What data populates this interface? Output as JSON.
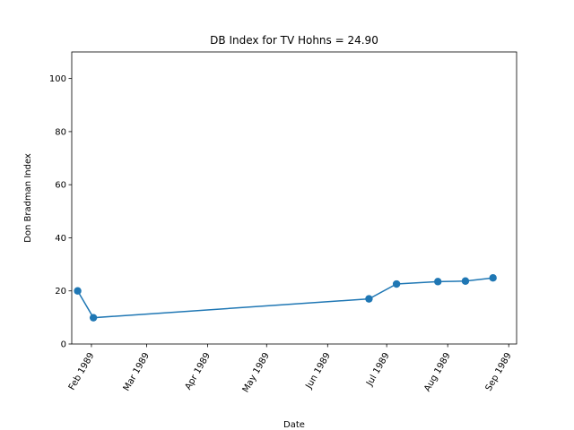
{
  "chart_data": {
    "type": "line",
    "title": "DB Index for TV Hohns = 24.90",
    "xlabel": "Date",
    "ylabel": "Don Bradman Index",
    "ylim": [
      0,
      110
    ],
    "xlim": [
      "1989-01-22",
      "1989-09-05"
    ],
    "yticks": [
      0,
      20,
      40,
      60,
      80,
      100
    ],
    "xticks": [
      {
        "date": "1989-02-01",
        "label": "Feb 1989"
      },
      {
        "date": "1989-03-01",
        "label": "Mar 1989"
      },
      {
        "date": "1989-04-01",
        "label": "Apr 1989"
      },
      {
        "date": "1989-05-01",
        "label": "May 1989"
      },
      {
        "date": "1989-06-01",
        "label": "Jun 1989"
      },
      {
        "date": "1989-07-01",
        "label": "Jul 1989"
      },
      {
        "date": "1989-08-01",
        "label": "Aug 1989"
      },
      {
        "date": "1989-09-01",
        "label": "Sep 1989"
      }
    ],
    "grid": false,
    "color": "#1f77b4",
    "series": [
      {
        "points": [
          {
            "x": "1989-01-25",
            "y": 20.0
          },
          {
            "x": "1989-02-02",
            "y": 9.9
          },
          {
            "x": "1989-06-22",
            "y": 17.0
          },
          {
            "x": "1989-07-06",
            "y": 22.6
          },
          {
            "x": "1989-07-27",
            "y": 23.5
          },
          {
            "x": "1989-08-10",
            "y": 23.7
          },
          {
            "x": "1989-08-24",
            "y": 24.9
          }
        ]
      }
    ]
  }
}
